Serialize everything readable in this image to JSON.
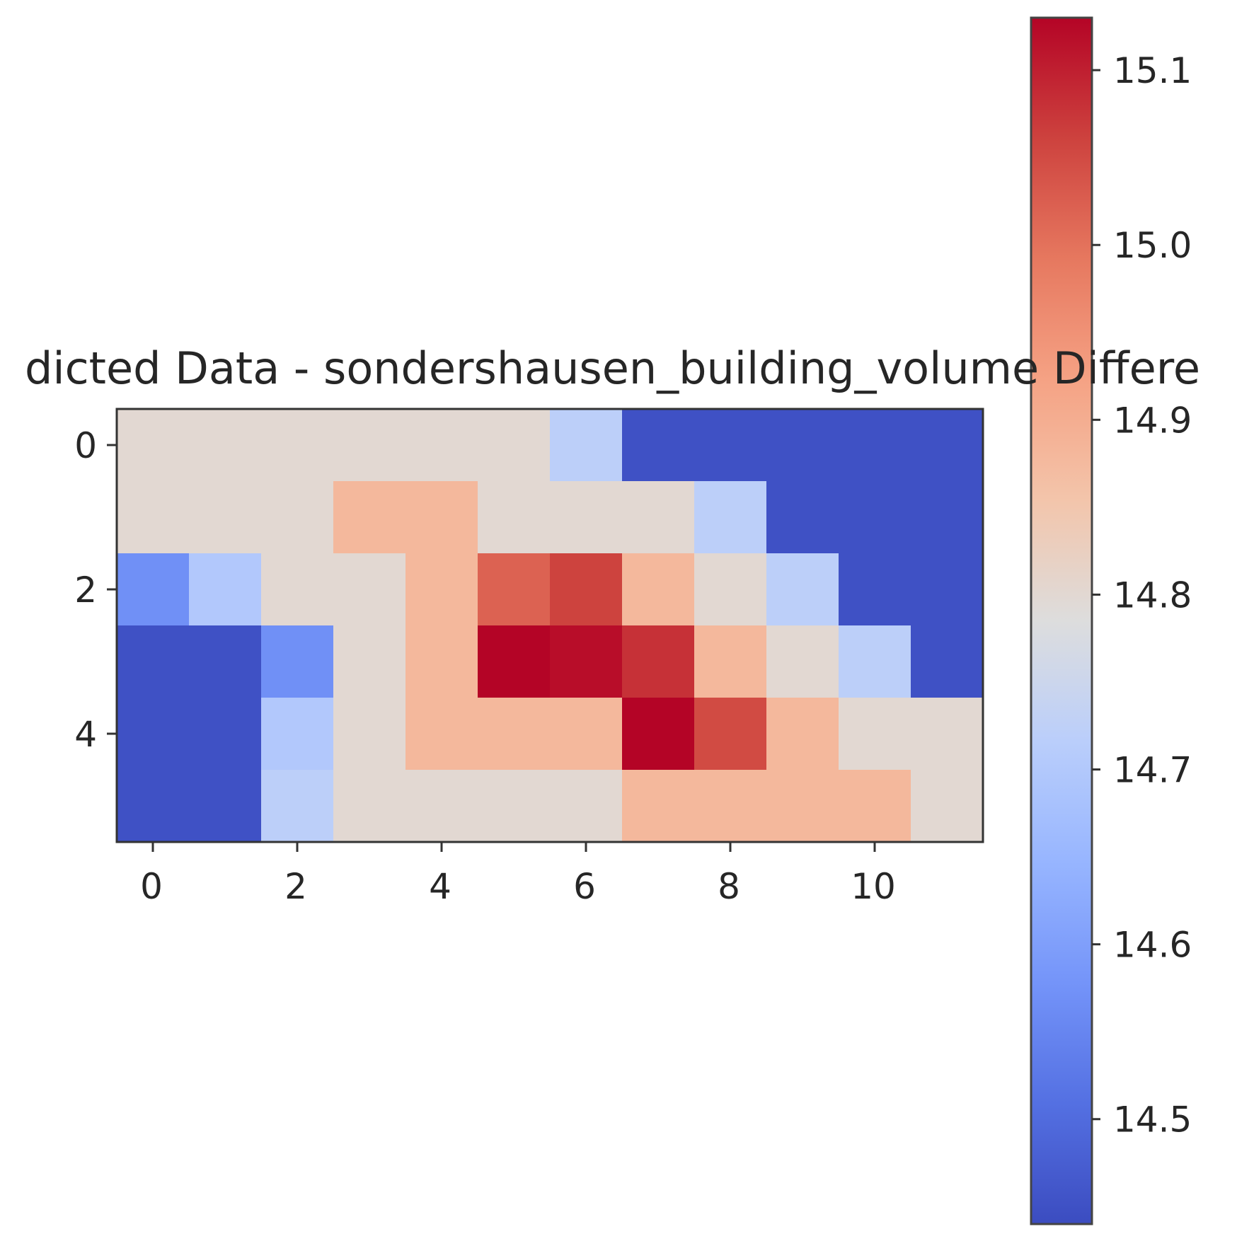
{
  "chart_data": {
    "type": "heatmap",
    "title": "dicted Data - sondershausen_building_volume   Differe",
    "xlabel": "",
    "ylabel": "",
    "x_ticks": [
      0,
      2,
      4,
      6,
      8,
      10
    ],
    "y_ticks": [
      0,
      2,
      4
    ],
    "colorbar": {
      "colormap": "coolwarm",
      "ticks": [
        14.5,
        14.6,
        14.7,
        14.8,
        14.9,
        15.0,
        15.1
      ],
      "tick_labels": [
        "14.5",
        "14.6",
        "14.7",
        "14.8",
        "14.9",
        "15.0",
        "15.1"
      ],
      "range": [
        14.44,
        15.13
      ]
    },
    "grid": false,
    "rows": 6,
    "cols": 12,
    "values": [
      [
        14.8,
        14.8,
        14.8,
        14.8,
        14.8,
        14.8,
        14.72,
        14.45,
        14.45,
        14.45,
        14.45,
        14.45
      ],
      [
        14.8,
        14.8,
        14.8,
        14.88,
        14.88,
        14.8,
        14.8,
        14.8,
        14.72,
        14.45,
        14.45,
        14.45
      ],
      [
        14.57,
        14.7,
        14.8,
        14.8,
        14.88,
        15.02,
        15.06,
        14.88,
        14.8,
        14.72,
        14.45,
        14.45
      ],
      [
        14.45,
        14.45,
        14.57,
        14.8,
        14.88,
        15.13,
        15.12,
        15.08,
        14.88,
        14.8,
        14.72,
        14.45
      ],
      [
        14.45,
        14.45,
        14.7,
        14.8,
        14.88,
        14.88,
        14.88,
        15.13,
        15.05,
        14.88,
        14.8,
        14.8
      ],
      [
        14.45,
        14.45,
        14.72,
        14.8,
        14.8,
        14.8,
        14.8,
        14.88,
        14.88,
        14.88,
        14.88,
        14.8
      ]
    ]
  }
}
